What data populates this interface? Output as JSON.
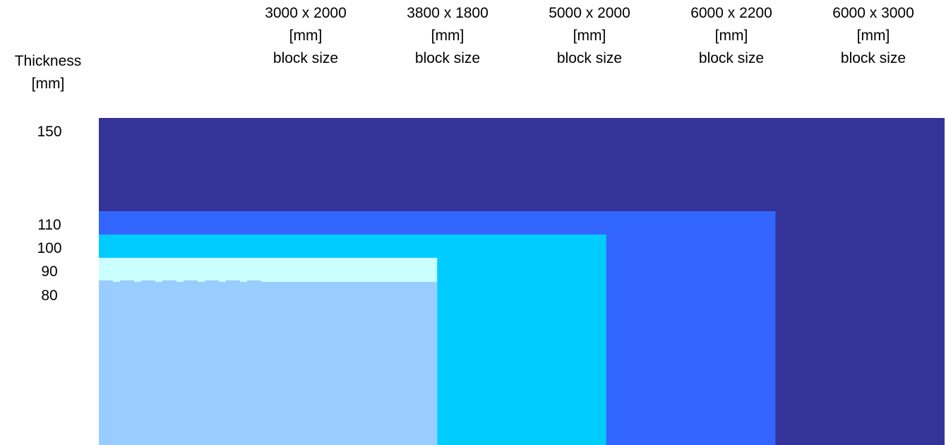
{
  "chart_data": {
    "type": "bar",
    "ylabel": [
      "Thickness",
      "[mm]"
    ],
    "y_ticks": [
      150,
      110,
      100,
      90,
      80
    ],
    "categories": [
      {
        "size": "3000 x 2000",
        "unit": "[mm]",
        "label": "block size",
        "max_thickness": 90,
        "color": "#ccffff"
      },
      {
        "size": "3800 x 1800",
        "unit": "[mm]",
        "label": "block size",
        "max_thickness": 80,
        "color": "#99ccff"
      },
      {
        "size": "5000 x 2000",
        "unit": "[mm]",
        "label": "block size",
        "max_thickness": 100,
        "color": "#00ccff"
      },
      {
        "size": "6000 x 2200",
        "unit": "[mm]",
        "label": "block size",
        "max_thickness": 110,
        "color": "#3366ff"
      },
      {
        "size": "6000 x 3000",
        "unit": "[mm]",
        "label": "block size",
        "max_thickness": 150,
        "color": "#333399"
      }
    ],
    "reference_line": {
      "value": 80,
      "style": "dashed",
      "color": "#99ccff"
    }
  }
}
